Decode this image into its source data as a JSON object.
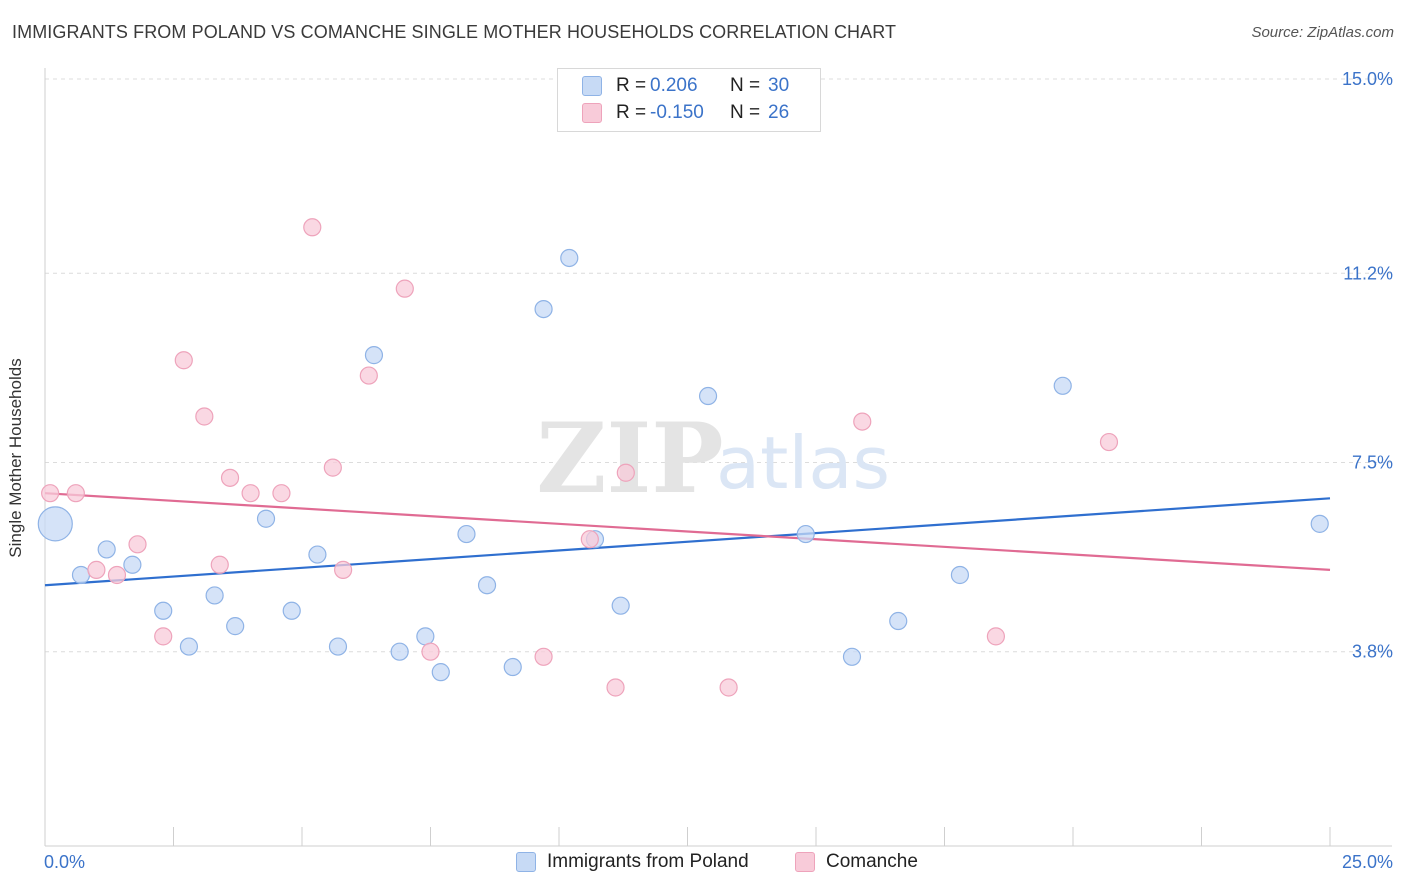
{
  "title": "IMMIGRANTS FROM POLAND VS COMANCHE SINGLE MOTHER HOUSEHOLDS CORRELATION CHART",
  "source": "Source: ZipAtlas.com",
  "watermark": {
    "zip": "ZIP",
    "atlas": "atlas"
  },
  "colors": {
    "blue_fill": "#c7daf5",
    "blue_stroke": "#8fb3e6",
    "blue_line": "#2f6fcf",
    "pink_fill": "#f8cbd9",
    "pink_stroke": "#eea3bb",
    "pink_line": "#e06b93",
    "axis_text": "#3b73c9",
    "grid": "#dcdcdc"
  },
  "legend": {
    "rows": [
      {
        "r_label": "R =",
        "r_value": "0.206",
        "n_label": "N =",
        "n_value": "30"
      },
      {
        "r_label": "R =",
        "r_value": "-0.150",
        "n_label": "N =",
        "n_value": "26"
      }
    ]
  },
  "bottom_legend": {
    "series1": "Immigrants from Poland",
    "series2": "Comanche"
  },
  "x_axis": {
    "min_label": "0.0%",
    "max_label": "25.0%"
  },
  "chart_data": {
    "type": "scatter",
    "title": "IMMIGRANTS FROM POLAND VS COMANCHE SINGLE MOTHER HOUSEHOLDS CORRELATION CHART",
    "xlabel": "",
    "ylabel": "Single Mother Households",
    "xlim": [
      0,
      25
    ],
    "ylim": [
      0,
      15.3
    ],
    "y_ticks": [
      {
        "value": 3.8,
        "label": "3.8%"
      },
      {
        "value": 7.5,
        "label": "7.5%"
      },
      {
        "value": 11.2,
        "label": "11.2%"
      },
      {
        "value": 15.0,
        "label": "15.0%"
      }
    ],
    "x_tick_values": [
      0,
      2.5,
      5,
      7.5,
      10,
      12.5,
      15,
      17.5,
      20,
      22.5,
      25
    ],
    "series": [
      {
        "name": "Immigrants from Poland",
        "r": 0.206,
        "n": 30,
        "trend": {
          "x": [
            0,
            25
          ],
          "y": [
            5.1,
            6.8
          ]
        },
        "points": [
          {
            "x": 0.2,
            "y": 6.3,
            "big": true
          },
          {
            "x": 0.7,
            "y": 5.3
          },
          {
            "x": 1.2,
            "y": 5.8
          },
          {
            "x": 1.7,
            "y": 5.5
          },
          {
            "x": 2.3,
            "y": 4.6
          },
          {
            "x": 2.8,
            "y": 3.9
          },
          {
            "x": 3.3,
            "y": 4.9
          },
          {
            "x": 3.7,
            "y": 4.3
          },
          {
            "x": 4.3,
            "y": 6.4
          },
          {
            "x": 4.8,
            "y": 4.6
          },
          {
            "x": 5.3,
            "y": 5.7
          },
          {
            "x": 5.7,
            "y": 3.9
          },
          {
            "x": 6.4,
            "y": 9.6
          },
          {
            "x": 6.9,
            "y": 3.8
          },
          {
            "x": 7.4,
            "y": 4.1
          },
          {
            "x": 7.7,
            "y": 3.4
          },
          {
            "x": 8.2,
            "y": 6.1
          },
          {
            "x": 8.6,
            "y": 5.1
          },
          {
            "x": 9.1,
            "y": 3.5
          },
          {
            "x": 9.7,
            "y": 10.5
          },
          {
            "x": 10.2,
            "y": 11.5
          },
          {
            "x": 10.7,
            "y": 6.0
          },
          {
            "x": 11.2,
            "y": 4.7
          },
          {
            "x": 12.9,
            "y": 8.8
          },
          {
            "x": 14.8,
            "y": 6.1
          },
          {
            "x": 15.7,
            "y": 3.7
          },
          {
            "x": 16.6,
            "y": 4.4
          },
          {
            "x": 17.8,
            "y": 5.3
          },
          {
            "x": 19.8,
            "y": 9.0
          },
          {
            "x": 24.8,
            "y": 6.3
          }
        ]
      },
      {
        "name": "Comanche",
        "r": -0.15,
        "n": 26,
        "trend": {
          "x": [
            0,
            25
          ],
          "y": [
            6.9,
            5.4
          ]
        },
        "points": [
          {
            "x": 0.1,
            "y": 6.9
          },
          {
            "x": 0.6,
            "y": 6.9
          },
          {
            "x": 1.0,
            "y": 5.4
          },
          {
            "x": 1.4,
            "y": 5.3
          },
          {
            "x": 1.8,
            "y": 5.9
          },
          {
            "x": 2.3,
            "y": 4.1
          },
          {
            "x": 2.7,
            "y": 9.5
          },
          {
            "x": 3.1,
            "y": 8.4
          },
          {
            "x": 3.4,
            "y": 5.5
          },
          {
            "x": 3.6,
            "y": 7.2
          },
          {
            "x": 4.0,
            "y": 6.9
          },
          {
            "x": 4.6,
            "y": 6.9
          },
          {
            "x": 5.2,
            "y": 12.1
          },
          {
            "x": 5.6,
            "y": 7.4
          },
          {
            "x": 5.8,
            "y": 5.4
          },
          {
            "x": 6.3,
            "y": 9.2
          },
          {
            "x": 7.0,
            "y": 10.9
          },
          {
            "x": 7.5,
            "y": 3.8
          },
          {
            "x": 9.7,
            "y": 3.7
          },
          {
            "x": 10.6,
            "y": 6.0
          },
          {
            "x": 11.1,
            "y": 3.1
          },
          {
            "x": 11.3,
            "y": 7.3
          },
          {
            "x": 13.3,
            "y": 3.1
          },
          {
            "x": 15.9,
            "y": 8.3
          },
          {
            "x": 18.5,
            "y": 4.1
          },
          {
            "x": 20.7,
            "y": 7.9
          }
        ]
      }
    ]
  }
}
